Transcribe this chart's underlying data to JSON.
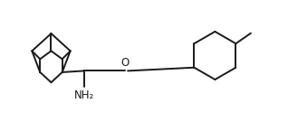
{
  "bg_color": "#ffffff",
  "line_color": "#1a1a1a",
  "line_width": 1.4,
  "figsize": [
    3.18,
    1.35
  ],
  "dpi": 100,
  "nh2_label": "NH₂",
  "o_label": "O"
}
